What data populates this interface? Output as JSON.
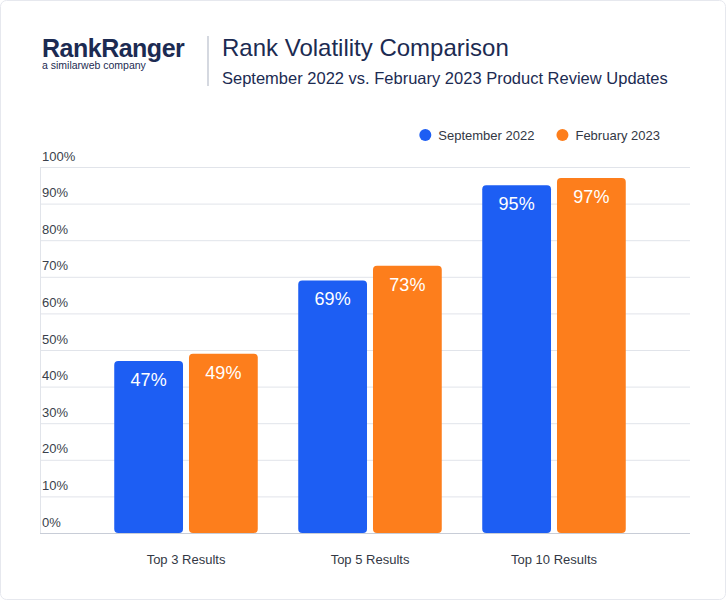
{
  "logo": {
    "name": "RankRanger",
    "tagline": "a similarweb company"
  },
  "chart_data": {
    "type": "bar",
    "title": "Rank Volatility Comparison",
    "subtitle": "September 2022 vs. February 2023 Product Review Updates",
    "categories": [
      "Top 3 Results",
      "Top 5 Results",
      "Top 10 Results"
    ],
    "series": [
      {
        "name": "September 2022",
        "color": "#1d5ef3",
        "values": [
          47,
          69,
          95
        ],
        "value_labels": [
          "47%",
          "69%",
          "95%"
        ]
      },
      {
        "name": "February 2023",
        "color": "#fd7e1c",
        "values": [
          49,
          73,
          97
        ],
        "value_labels": [
          "49%",
          "73%",
          "97%"
        ]
      }
    ],
    "ylim": [
      0,
      100
    ],
    "yticks": [
      {
        "value": 0,
        "label": "0%"
      },
      {
        "value": 10,
        "label": "10%"
      },
      {
        "value": 20,
        "label": "20%"
      },
      {
        "value": 30,
        "label": "30%"
      },
      {
        "value": 40,
        "label": "40%"
      },
      {
        "value": 50,
        "label": "50%"
      },
      {
        "value": 60,
        "label": "60%"
      },
      {
        "value": 70,
        "label": "70%"
      },
      {
        "value": 80,
        "label": "80%"
      },
      {
        "value": 90,
        "label": "90%"
      },
      {
        "value": 100,
        "label": "100%"
      }
    ],
    "grid": true,
    "legend": "top-right",
    "data_labels": true
  }
}
